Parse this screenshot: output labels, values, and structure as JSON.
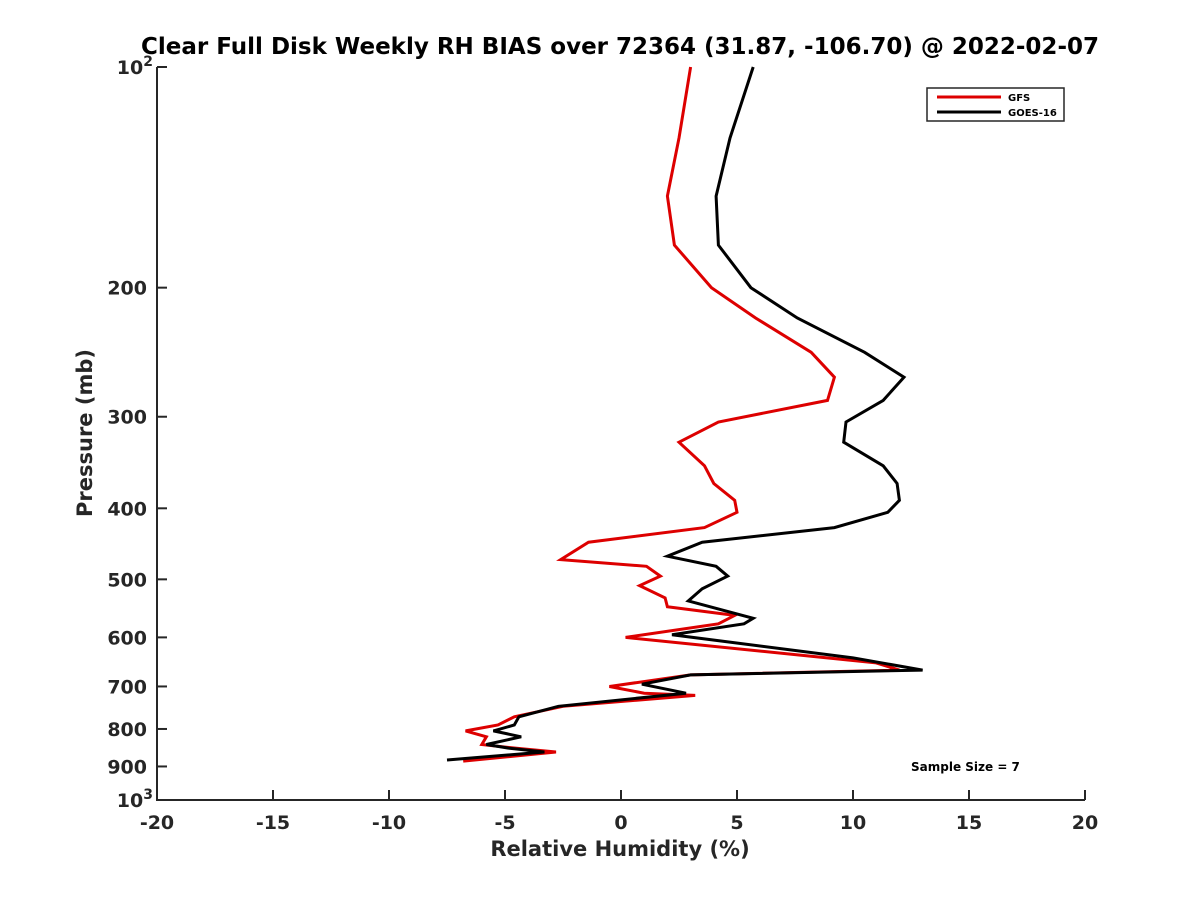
{
  "chart_data": {
    "type": "line",
    "title": "Clear Full Disk Weekly RH BIAS over 72364 (31.87, -106.70) @ 2022-02-07",
    "xlabel": "Relative Humidity (%)",
    "ylabel": "Pressure (mb)",
    "xlim": [
      -20,
      20
    ],
    "ylim": [
      100,
      1000
    ],
    "yscale": "log",
    "y_reversed": true,
    "xticks": [
      -20,
      -15,
      -10,
      -5,
      0,
      5,
      10,
      15,
      20
    ],
    "yticks": [
      {
        "value": 100,
        "label": "10",
        "sup": "2"
      },
      {
        "value": 200,
        "label": "200",
        "sup": ""
      },
      {
        "value": 300,
        "label": "300",
        "sup": ""
      },
      {
        "value": 400,
        "label": "400",
        "sup": ""
      },
      {
        "value": 500,
        "label": "500",
        "sup": ""
      },
      {
        "value": 600,
        "label": "600",
        "sup": ""
      },
      {
        "value": 700,
        "label": "700",
        "sup": ""
      },
      {
        "value": 800,
        "label": "800",
        "sup": ""
      },
      {
        "value": 900,
        "label": "900",
        "sup": ""
      },
      {
        "value": 1000,
        "label": "10",
        "sup": "3"
      }
    ],
    "grid": false,
    "legend_position": "top-right",
    "annotation": "Sample Size = 7",
    "series": [
      {
        "name": "GFS",
        "color": "#dd0000",
        "points": [
          [
            3.0,
            100
          ],
          [
            2.5,
            125
          ],
          [
            2.0,
            150
          ],
          [
            2.3,
            175
          ],
          [
            3.9,
            200
          ],
          [
            5.8,
            220
          ],
          [
            8.2,
            245
          ],
          [
            9.2,
            265
          ],
          [
            8.9,
            285
          ],
          [
            4.2,
            305
          ],
          [
            2.5,
            325
          ],
          [
            3.6,
            350
          ],
          [
            4.0,
            370
          ],
          [
            4.9,
            390
          ],
          [
            5.0,
            405
          ],
          [
            3.6,
            425
          ],
          [
            -1.4,
            445
          ],
          [
            -2.6,
            470
          ],
          [
            1.1,
            480
          ],
          [
            1.7,
            495
          ],
          [
            0.8,
            510
          ],
          [
            1.9,
            530
          ],
          [
            2.0,
            545
          ],
          [
            4.9,
            560
          ],
          [
            4.2,
            575
          ],
          [
            0.2,
            600
          ],
          [
            11.0,
            650
          ],
          [
            12.0,
            665
          ],
          [
            3.0,
            675
          ],
          [
            -0.5,
            700
          ],
          [
            1.0,
            715
          ],
          [
            3.2,
            720
          ],
          [
            -2.5,
            745
          ],
          [
            -4.6,
            770
          ],
          [
            -5.3,
            790
          ],
          [
            -6.7,
            805
          ],
          [
            -5.8,
            820
          ],
          [
            -6.0,
            840
          ],
          [
            -4.5,
            850
          ],
          [
            -2.8,
            860
          ],
          [
            -6.8,
            885
          ]
        ]
      },
      {
        "name": "GOES-16",
        "color": "#000000",
        "points": [
          [
            5.7,
            100
          ],
          [
            4.7,
            125
          ],
          [
            4.1,
            150
          ],
          [
            4.2,
            175
          ],
          [
            5.6,
            200
          ],
          [
            7.6,
            220
          ],
          [
            10.5,
            245
          ],
          [
            12.2,
            265
          ],
          [
            11.3,
            285
          ],
          [
            9.7,
            305
          ],
          [
            9.6,
            325
          ],
          [
            11.3,
            350
          ],
          [
            11.9,
            370
          ],
          [
            12.0,
            390
          ],
          [
            11.5,
            405
          ],
          [
            9.2,
            425
          ],
          [
            3.5,
            445
          ],
          [
            2.0,
            465
          ],
          [
            4.1,
            480
          ],
          [
            4.6,
            495
          ],
          [
            3.5,
            515
          ],
          [
            2.9,
            535
          ],
          [
            5.7,
            565
          ],
          [
            5.3,
            575
          ],
          [
            2.2,
            595
          ],
          [
            10.0,
            640
          ],
          [
            13.0,
            665
          ],
          [
            3.0,
            675
          ],
          [
            0.9,
            695
          ],
          [
            2.8,
            715
          ],
          [
            -2.7,
            745
          ],
          [
            -4.4,
            770
          ],
          [
            -4.6,
            790
          ],
          [
            -5.5,
            805
          ],
          [
            -4.3,
            820
          ],
          [
            -5.8,
            840
          ],
          [
            -4.8,
            850
          ],
          [
            -3.3,
            860
          ],
          [
            -7.5,
            882
          ]
        ]
      }
    ]
  }
}
